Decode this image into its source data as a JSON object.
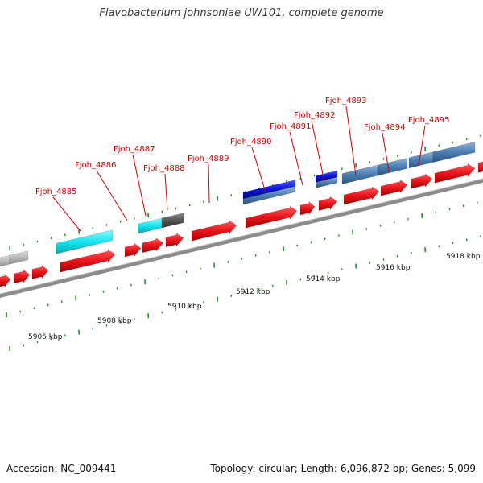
{
  "title": "Flavobacterium johnsoniae UW101, complete genome",
  "footer": {
    "accession": "Accession: NC_009441",
    "summary": "Topology: circular; Length: 6,096,872 bp; Genes: 5,099"
  },
  "colors": {
    "backbone": "#888888",
    "cds": "#e8141b",
    "gene_cyan": "#14e6ef",
    "gene_blue": "#0a14d8",
    "gene_steel": "#4c7eb3",
    "gene_gray": "#b8b8b8",
    "gene_dark": "#555555",
    "tick": "#1a7a1a",
    "label_red": "#cc0000"
  },
  "scale_labels": [
    "5906 kbp",
    "5908 kbp",
    "5910 kbp",
    "5912 kbp",
    "5914 kbp",
    "5916 kbp",
    "5918 kbp"
  ],
  "gene_labels": [
    "Fjoh_4885",
    "Fjoh_4886",
    "Fjoh_4887",
    "Fjoh_4888",
    "Fjoh_4889",
    "Fjoh_4890",
    "Fjoh_4891",
    "Fjoh_4892",
    "Fjoh_4893",
    "Fjoh_4894",
    "Fjoh_4895"
  ]
}
